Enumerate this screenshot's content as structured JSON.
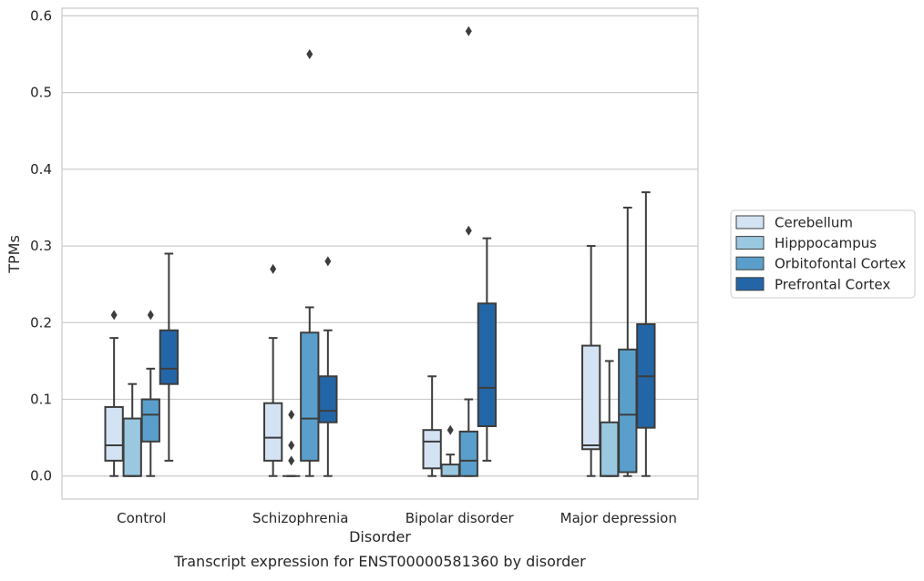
{
  "chart_data": {
    "type": "box",
    "title": "",
    "caption": "Transcript expression for ENST00000581360 by disorder",
    "xlabel": "Disorder",
    "ylabel": "TPMs",
    "categories": [
      "Control",
      "Schizophrenia",
      "Bipolar disorder",
      "Major depression"
    ],
    "ylim": [
      -0.03,
      0.61
    ],
    "yticks": [
      0.0,
      0.1,
      0.2,
      0.3,
      0.4,
      0.5,
      0.6
    ],
    "ytick_labels": [
      "0.0",
      "0.1",
      "0.2",
      "0.3",
      "0.4",
      "0.5",
      "0.6"
    ],
    "grid": "horizontal",
    "legend": {
      "placement": "right-center",
      "title": ""
    },
    "series": [
      {
        "name": "Cerebellum",
        "color": "#d3e3f3",
        "boxes": [
          {
            "min": 0.0,
            "q1": 0.02,
            "median": 0.04,
            "q3": 0.09,
            "max": 0.18,
            "outliers": [
              0.21
            ]
          },
          {
            "min": 0.0,
            "q1": 0.02,
            "median": 0.05,
            "q3": 0.095,
            "max": 0.18,
            "outliers": [
              0.27
            ]
          },
          {
            "min": 0.0,
            "q1": 0.01,
            "median": 0.045,
            "q3": 0.06,
            "max": 0.13,
            "outliers": []
          },
          {
            "min": 0.0,
            "q1": 0.035,
            "median": 0.04,
            "q3": 0.17,
            "max": 0.3,
            "outliers": []
          }
        ]
      },
      {
        "name": "Hipppocampus",
        "color": "#9ac8e0",
        "boxes": [
          {
            "min": 0.0,
            "q1": 0.0,
            "median": 0.0,
            "q3": 0.075,
            "max": 0.12,
            "outliers": []
          },
          {
            "min": 0.0,
            "q1": 0.0,
            "median": 0.0,
            "q3": 0.0,
            "max": 0.0,
            "outliers": [
              0.02,
              0.04,
              0.08
            ]
          },
          {
            "min": 0.0,
            "q1": 0.0,
            "median": 0.0,
            "q3": 0.015,
            "max": 0.028,
            "outliers": [
              0.06
            ]
          },
          {
            "min": 0.0,
            "q1": 0.0,
            "median": 0.0,
            "q3": 0.07,
            "max": 0.15,
            "outliers": []
          }
        ]
      },
      {
        "name": "Orbitofontal Cortex",
        "color": "#5a9fcc",
        "boxes": [
          {
            "min": 0.0,
            "q1": 0.045,
            "median": 0.08,
            "q3": 0.1,
            "max": 0.14,
            "outliers": [
              0.21
            ]
          },
          {
            "min": 0.0,
            "q1": 0.02,
            "median": 0.075,
            "q3": 0.187,
            "max": 0.22,
            "outliers": [
              0.55
            ]
          },
          {
            "min": 0.0,
            "q1": 0.0,
            "median": 0.02,
            "q3": 0.058,
            "max": 0.1,
            "outliers": [
              0.32,
              0.58
            ]
          },
          {
            "min": 0.0,
            "q1": 0.005,
            "median": 0.08,
            "q3": 0.165,
            "max": 0.35,
            "outliers": []
          }
        ]
      },
      {
        "name": "Prefrontal Cortex",
        "color": "#2366a8",
        "boxes": [
          {
            "min": 0.02,
            "q1": 0.12,
            "median": 0.14,
            "q3": 0.19,
            "max": 0.29,
            "outliers": []
          },
          {
            "min": 0.0,
            "q1": 0.07,
            "median": 0.085,
            "q3": 0.13,
            "max": 0.19,
            "outliers": [
              0.28
            ]
          },
          {
            "min": 0.02,
            "q1": 0.065,
            "median": 0.115,
            "q3": 0.225,
            "max": 0.31,
            "outliers": []
          },
          {
            "min": 0.0,
            "q1": 0.063,
            "median": 0.13,
            "q3": 0.198,
            "max": 0.37,
            "outliers": []
          }
        ]
      }
    ]
  }
}
